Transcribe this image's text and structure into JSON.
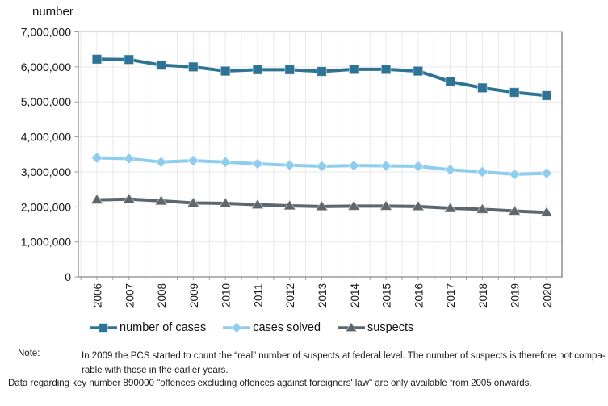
{
  "title": "number",
  "chart_data": {
    "type": "line",
    "x": [
      "2006",
      "2007",
      "2008",
      "2009",
      "2010",
      "2011",
      "2012",
      "2013",
      "2014",
      "2015",
      "2016",
      "2017",
      "2018",
      "2019",
      "2020"
    ],
    "series": [
      {
        "name": "number of cases",
        "marker": "square",
        "color": "#2c7396",
        "values": [
          6220000,
          6210000,
          6050000,
          6000000,
          5880000,
          5920000,
          5920000,
          5870000,
          5930000,
          5930000,
          5880000,
          5580000,
          5400000,
          5270000,
          5180000
        ]
      },
      {
        "name": "cases solved",
        "marker": "diamond",
        "color": "#8ecdee",
        "values": [
          3400000,
          3380000,
          3280000,
          3320000,
          3280000,
          3230000,
          3190000,
          3160000,
          3180000,
          3170000,
          3160000,
          3060000,
          3000000,
          2930000,
          2960000
        ]
      },
      {
        "name": "suspects",
        "marker": "triangle",
        "color": "#5c666c",
        "values": [
          2200000,
          2220000,
          2170000,
          2110000,
          2100000,
          2060000,
          2030000,
          2010000,
          2020000,
          2020000,
          2010000,
          1960000,
          1930000,
          1880000,
          1840000
        ]
      }
    ],
    "title": "number",
    "xlabel": "",
    "ylabel": "number",
    "ylim": [
      0,
      7000000
    ],
    "ytick_step": 1000000,
    "ytick_labels": [
      "0",
      "1,000,000",
      "2,000,000",
      "3,000,000",
      "4,000,000",
      "5,000,000",
      "6,000,000",
      "7,000,000"
    ],
    "grid": "on",
    "legend_position": "bottom"
  },
  "colors": {
    "grid": "#e9e9e9",
    "axis": "#9b9b9b",
    "border_top": "#d9d9d9",
    "border_right": "#aaaaaa",
    "text": "#1a1a1a"
  },
  "notes": {
    "label": "Note:",
    "note1_line1": "In 2009 the PCS started to count the “real” number of suspects at federal level. The number of suspects is therefore not compa-",
    "note1_line2": "rable with those in the earlier years.",
    "note2": "Data regarding key number 890000 \"offences excluding offences against foreigners' law\" are only available from 2005 onwards."
  }
}
